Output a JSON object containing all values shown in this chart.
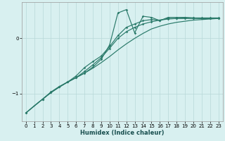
{
  "xlabel": "Humidex (Indice chaleur)",
  "bg_color": "#d8f0f0",
  "grid_color": "#b8d8d8",
  "line_color": "#2a7a6a",
  "xlim": [
    -0.5,
    23.5
  ],
  "ylim": [
    -1.5,
    0.65
  ],
  "yticks": [
    -1,
    0
  ],
  "xticks": [
    0,
    1,
    2,
    3,
    4,
    5,
    6,
    7,
    8,
    9,
    10,
    11,
    12,
    13,
    14,
    15,
    16,
    17,
    18,
    19,
    20,
    21,
    22,
    23
  ],
  "line1_x": [
    0,
    1,
    2,
    3,
    4,
    5,
    6,
    7,
    8,
    9,
    10,
    11,
    12,
    13,
    14,
    15,
    16,
    17,
    18,
    19,
    20,
    21,
    22,
    23
  ],
  "line1_y": [
    -1.35,
    -1.22,
    -1.1,
    -0.98,
    -0.88,
    -0.79,
    -0.71,
    -0.63,
    -0.54,
    -0.44,
    -0.33,
    -0.21,
    -0.1,
    0.0,
    0.09,
    0.17,
    0.22,
    0.26,
    0.29,
    0.31,
    0.33,
    0.34,
    0.35,
    0.36
  ],
  "line2_x": [
    0,
    2,
    3,
    4,
    5,
    6,
    7,
    8,
    9,
    10,
    11,
    12,
    13,
    14,
    15,
    16,
    17,
    18,
    19,
    20,
    21,
    22,
    23
  ],
  "line2_y": [
    -1.35,
    -1.1,
    -0.98,
    -0.88,
    -0.79,
    -0.71,
    -0.63,
    -0.52,
    -0.38,
    -0.12,
    0.46,
    0.52,
    0.1,
    0.4,
    0.38,
    0.32,
    0.38,
    0.38,
    0.38,
    0.37,
    0.36,
    0.36,
    0.36
  ],
  "line3_x": [
    0,
    2,
    3,
    4,
    5,
    6,
    7,
    8,
    9,
    10,
    11,
    12,
    13,
    14,
    15,
    16,
    17,
    18,
    19,
    20,
    21,
    22,
    23
  ],
  "line3_y": [
    -1.35,
    -1.1,
    -0.98,
    -0.88,
    -0.79,
    -0.71,
    -0.6,
    -0.48,
    -0.35,
    -0.18,
    0.0,
    0.12,
    0.2,
    0.26,
    0.3,
    0.33,
    0.35,
    0.36,
    0.37,
    0.37,
    0.37,
    0.37,
    0.37
  ],
  "line4_x": [
    2,
    3,
    4,
    5,
    6,
    7,
    8,
    9,
    10,
    11,
    12,
    13,
    14,
    15,
    16,
    17,
    18,
    19,
    20,
    21,
    22,
    23
  ],
  "line4_y": [
    -1.1,
    -0.97,
    -0.87,
    -0.79,
    -0.68,
    -0.53,
    -0.42,
    -0.32,
    -0.15,
    0.05,
    0.2,
    0.26,
    0.32,
    0.34,
    0.33,
    0.36,
    0.36,
    0.36,
    0.36,
    0.36,
    0.36,
    0.36
  ]
}
